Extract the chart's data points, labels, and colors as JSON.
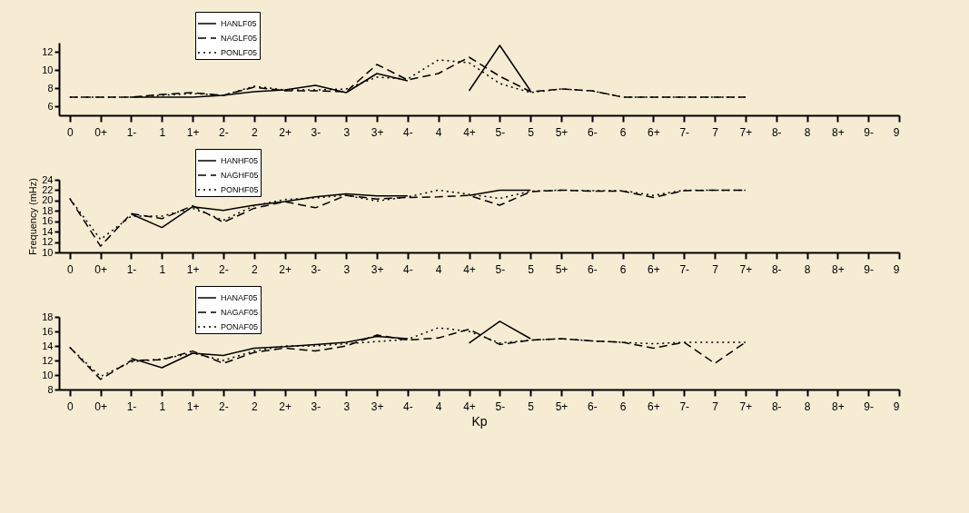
{
  "chart_data": [
    {
      "type": "line",
      "categories": [
        "0",
        "0+",
        "1-",
        "1",
        "1+",
        "2-",
        "2",
        "2+",
        "3-",
        "3",
        "3+",
        "4-",
        "4",
        "4+",
        "5-",
        "5",
        "5+",
        "6-",
        "6",
        "6+",
        "7-",
        "7",
        "7+",
        "8-",
        "8",
        "8+",
        "9-",
        "9"
      ],
      "ylim": [
        5,
        13
      ],
      "yticks": [
        6,
        8,
        10,
        12
      ],
      "legend": "top left",
      "grid": false,
      "marker": "none",
      "series": [
        {
          "name": "HANLF05",
          "color": "#000000",
          "line_style": "solid",
          "values": [
            null,
            null,
            7.0,
            7.0,
            7.0,
            7.2,
            7.6,
            7.8,
            8.3,
            7.5,
            9.6,
            8.8,
            null,
            7.7,
            12.7,
            7.7,
            null,
            null,
            null,
            null,
            null,
            null,
            null,
            null,
            null,
            null,
            null,
            null
          ]
        },
        {
          "name": "NAGLF05",
          "color": "#000000",
          "line_style": "dashed",
          "values": [
            7.0,
            7.0,
            7.0,
            7.3,
            7.5,
            7.2,
            8.1,
            7.7,
            7.7,
            7.6,
            10.6,
            8.9,
            9.6,
            11.4,
            9.3,
            7.6,
            7.9,
            7.7,
            7.0,
            7.0,
            7.0,
            7.0,
            7.0,
            null,
            null,
            null,
            null,
            null
          ]
        },
        {
          "name": "PONLF05",
          "color": "#000000",
          "line_style": "dotted",
          "values": [
            7.0,
            7.0,
            7.0,
            7.2,
            7.4,
            7.2,
            8.2,
            7.8,
            7.8,
            7.9,
            9.2,
            9.0,
            11.1,
            10.8,
            8.5,
            7.5,
            7.9,
            7.7,
            7.0,
            7.0,
            7.0,
            7.0,
            7.0,
            null,
            null,
            null,
            null,
            null
          ]
        }
      ]
    },
    {
      "type": "line",
      "ylabel": "Frequency (mHz)",
      "categories": [
        "0",
        "0+",
        "1-",
        "1",
        "1+",
        "2-",
        "2",
        "2+",
        "3-",
        "3",
        "3+",
        "4-",
        "4",
        "4+",
        "5-",
        "5",
        "5+",
        "6-",
        "6",
        "6+",
        "7-",
        "7",
        "7+",
        "8-",
        "8",
        "8+",
        "9-",
        "9"
      ],
      "ylim": [
        10,
        24
      ],
      "yticks": [
        10,
        12,
        14,
        16,
        18,
        20,
        22,
        24
      ],
      "legend": "top left",
      "grid": false,
      "marker": "none",
      "series": [
        {
          "name": "HANHF05",
          "color": "#000000",
          "line_style": "solid",
          "values": [
            null,
            null,
            17.4,
            14.8,
            18.8,
            18.1,
            19.1,
            19.8,
            20.7,
            21.3,
            20.9,
            20.9,
            null,
            21.0,
            22.0,
            22.0,
            null,
            null,
            null,
            null,
            null,
            null,
            null,
            null,
            null,
            null,
            null,
            null
          ]
        },
        {
          "name": "NAGHF05",
          "color": "#000000",
          "line_style": "dashed",
          "values": [
            20.4,
            11.2,
            17.5,
            16.5,
            19.0,
            15.8,
            18.5,
            19.8,
            18.6,
            21.0,
            20.3,
            20.6,
            20.7,
            21.0,
            19.1,
            21.7,
            22.0,
            21.8,
            21.8,
            20.6,
            21.9,
            22.0,
            22.0,
            null,
            null,
            null,
            null,
            null
          ]
        },
        {
          "name": "PONHF05",
          "color": "#000000",
          "line_style": "dotted",
          "values": [
            20.4,
            12.5,
            17.0,
            17.0,
            18.5,
            16.2,
            19.0,
            20.2,
            20.5,
            21.0,
            19.9,
            20.7,
            22.0,
            21.2,
            20.4,
            21.8,
            22.0,
            21.9,
            21.9,
            21.0,
            22.0,
            22.0,
            22.0,
            null,
            null,
            null,
            null,
            null
          ]
        }
      ]
    },
    {
      "type": "line",
      "xlabel": "Kp",
      "categories": [
        "0",
        "0+",
        "1-",
        "1",
        "1+",
        "2-",
        "2",
        "2+",
        "3-",
        "3",
        "3+",
        "4-",
        "4",
        "4+",
        "5-",
        "5",
        "5+",
        "6-",
        "6",
        "6+",
        "7-",
        "7",
        "7+",
        "8-",
        "8",
        "8+",
        "9-",
        "9"
      ],
      "ylim": [
        8,
        18
      ],
      "yticks": [
        8,
        10,
        12,
        14,
        16,
        18
      ],
      "legend": "top left",
      "grid": false,
      "marker": "none",
      "series": [
        {
          "name": "HANAF05",
          "color": "#000000",
          "line_style": "solid",
          "values": [
            null,
            null,
            12.3,
            11.0,
            13.0,
            12.7,
            13.7,
            13.9,
            14.2,
            14.5,
            15.3,
            15.0,
            null,
            14.4,
            17.4,
            15.0,
            null,
            null,
            null,
            null,
            null,
            null,
            null,
            null,
            null,
            null,
            null,
            null
          ]
        },
        {
          "name": "NAGAF05",
          "color": "#000000",
          "line_style": "dashed",
          "values": [
            13.8,
            9.4,
            12.0,
            12.1,
            13.3,
            11.6,
            13.1,
            13.7,
            13.3,
            14.0,
            15.5,
            14.8,
            15.1,
            16.3,
            14.2,
            14.8,
            15.0,
            14.7,
            14.5,
            13.7,
            14.5,
            11.6,
            14.5,
            null,
            null,
            null,
            null,
            null
          ]
        },
        {
          "name": "PONAF05",
          "color": "#000000",
          "line_style": "dotted",
          "values": [
            13.8,
            9.8,
            11.8,
            12.2,
            13.0,
            12.0,
            13.3,
            14.0,
            14.0,
            14.3,
            14.6,
            14.9,
            16.5,
            16.0,
            14.4,
            14.8,
            15.0,
            14.7,
            14.5,
            14.3,
            14.5,
            14.5,
            14.5,
            null,
            null,
            null,
            null,
            null
          ]
        }
      ]
    }
  ]
}
